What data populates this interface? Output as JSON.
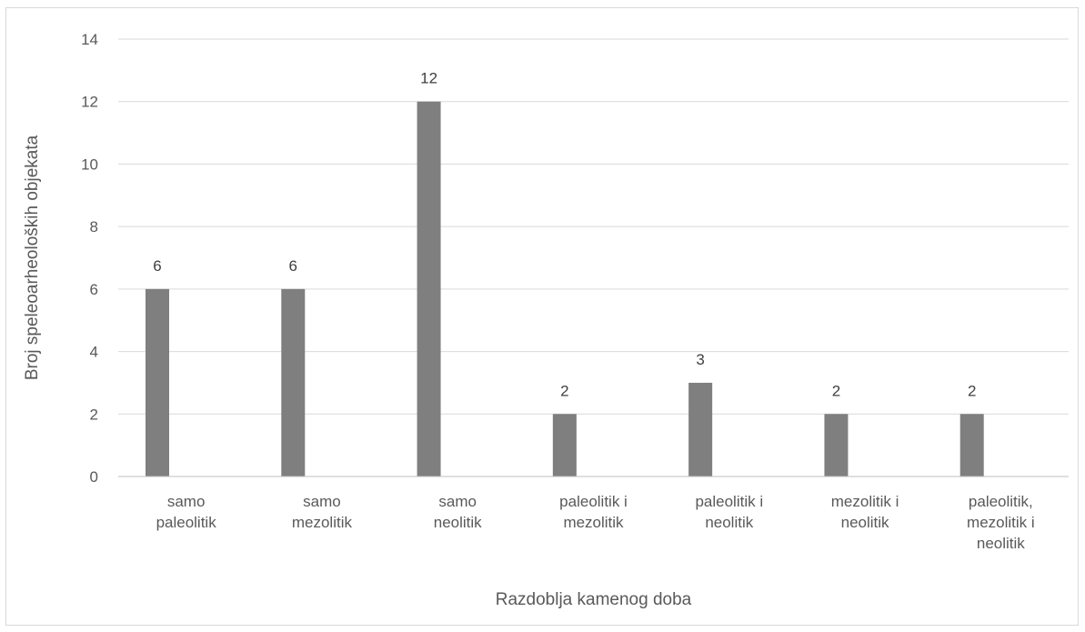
{
  "chart_data": {
    "type": "bar",
    "categories": [
      [
        "samo",
        "paleolitik"
      ],
      [
        "samo",
        "mezolitik"
      ],
      [
        "samo",
        "neolitik"
      ],
      [
        "paleolitik i",
        "mezolitik"
      ],
      [
        "paleolitik i",
        "neolitik"
      ],
      [
        "mezolitik i",
        "neolitik"
      ],
      [
        "paleolitik,",
        "mezolitik i",
        "neolitik"
      ]
    ],
    "values": [
      6,
      6,
      12,
      2,
      3,
      2,
      2
    ],
    "data_labels": [
      "6",
      "6",
      "12",
      "2",
      "3",
      "2",
      "2"
    ],
    "xlabel": "Razdoblja kamenog doba",
    "ylabel": "Broj speleoarheoloških objekata",
    "ylim": [
      0,
      14
    ],
    "yticks": [
      0,
      2,
      4,
      6,
      8,
      10,
      12,
      14
    ],
    "grid": true,
    "legend": "none",
    "colors": {
      "bar": "#7f7f7f",
      "grid": "#d9d9d9",
      "axis": "#bfbfbf",
      "text": "#595959"
    }
  }
}
